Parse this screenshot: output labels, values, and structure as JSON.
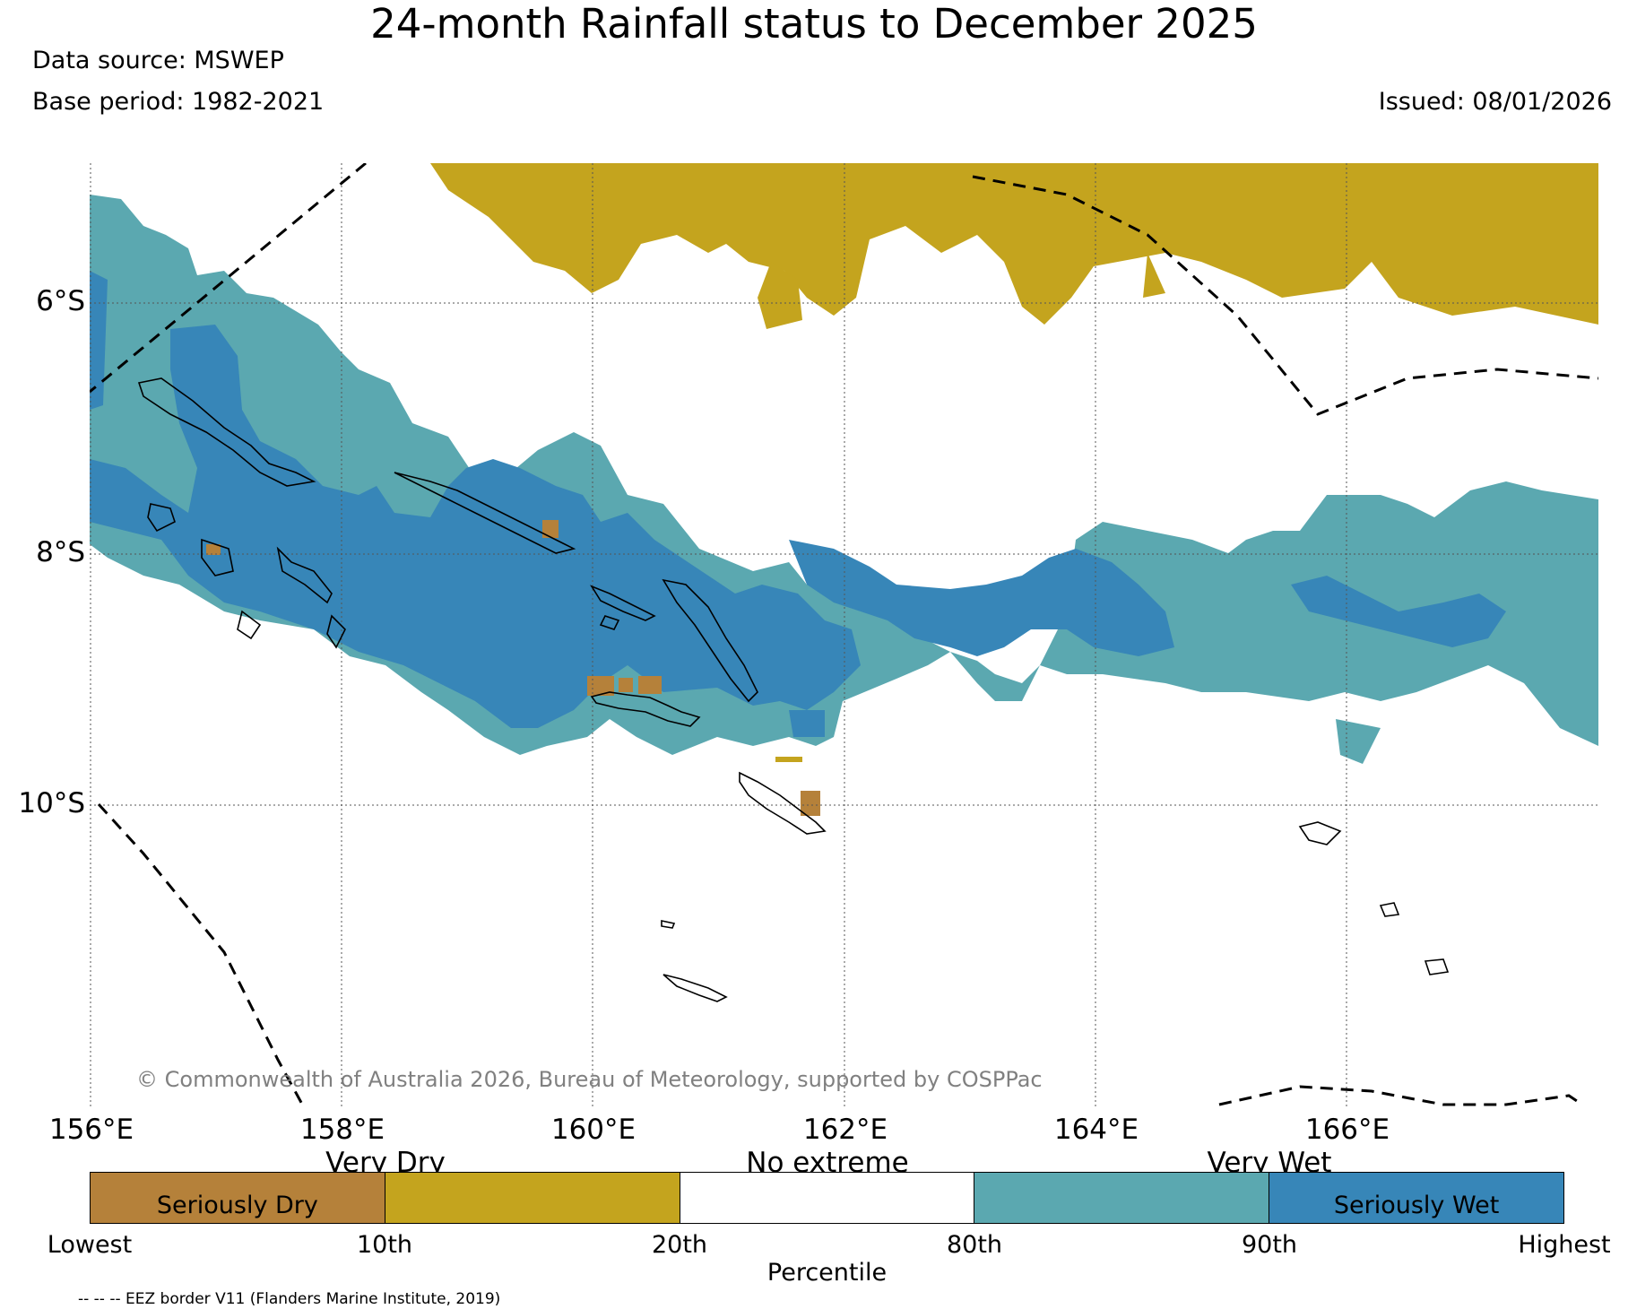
{
  "header": {
    "title": "24-month Rainfall status to December 2025",
    "data_source": "Data source: MSWEP",
    "base_period": "Base period: 1982-2021",
    "issued": "Issued: 08/01/2026"
  },
  "map": {
    "lat_labels": [
      "6°S",
      "8°S",
      "10°S"
    ],
    "lon_labels": [
      "156°E",
      "158°E",
      "160°E",
      "162°E",
      "164°E",
      "166°E"
    ],
    "copyright": "© Commonwealth of Australia 2026, Bureau of Meteorology, supported by COSPPac",
    "colors": {
      "seriously_dry": "#b5813a",
      "very_dry": "#c4a41e",
      "no_extreme": "#ffffff",
      "very_wet": "#5ba8b0",
      "seriously_wet": "#3786b8"
    }
  },
  "legend": {
    "categories_top": [
      "Very Dry",
      "No extreme",
      "Very Wet"
    ],
    "segment_labels": [
      "Seriously Dry",
      "",
      "",
      "",
      "Seriously Wet"
    ],
    "ticks": [
      "Lowest",
      "10th",
      "20th",
      "80th",
      "90th",
      "Highest"
    ],
    "axis_label": "Percentile",
    "eez_note": "-- -- -- EEZ border V11 (Flanders Marine Institute, 2019)"
  }
}
